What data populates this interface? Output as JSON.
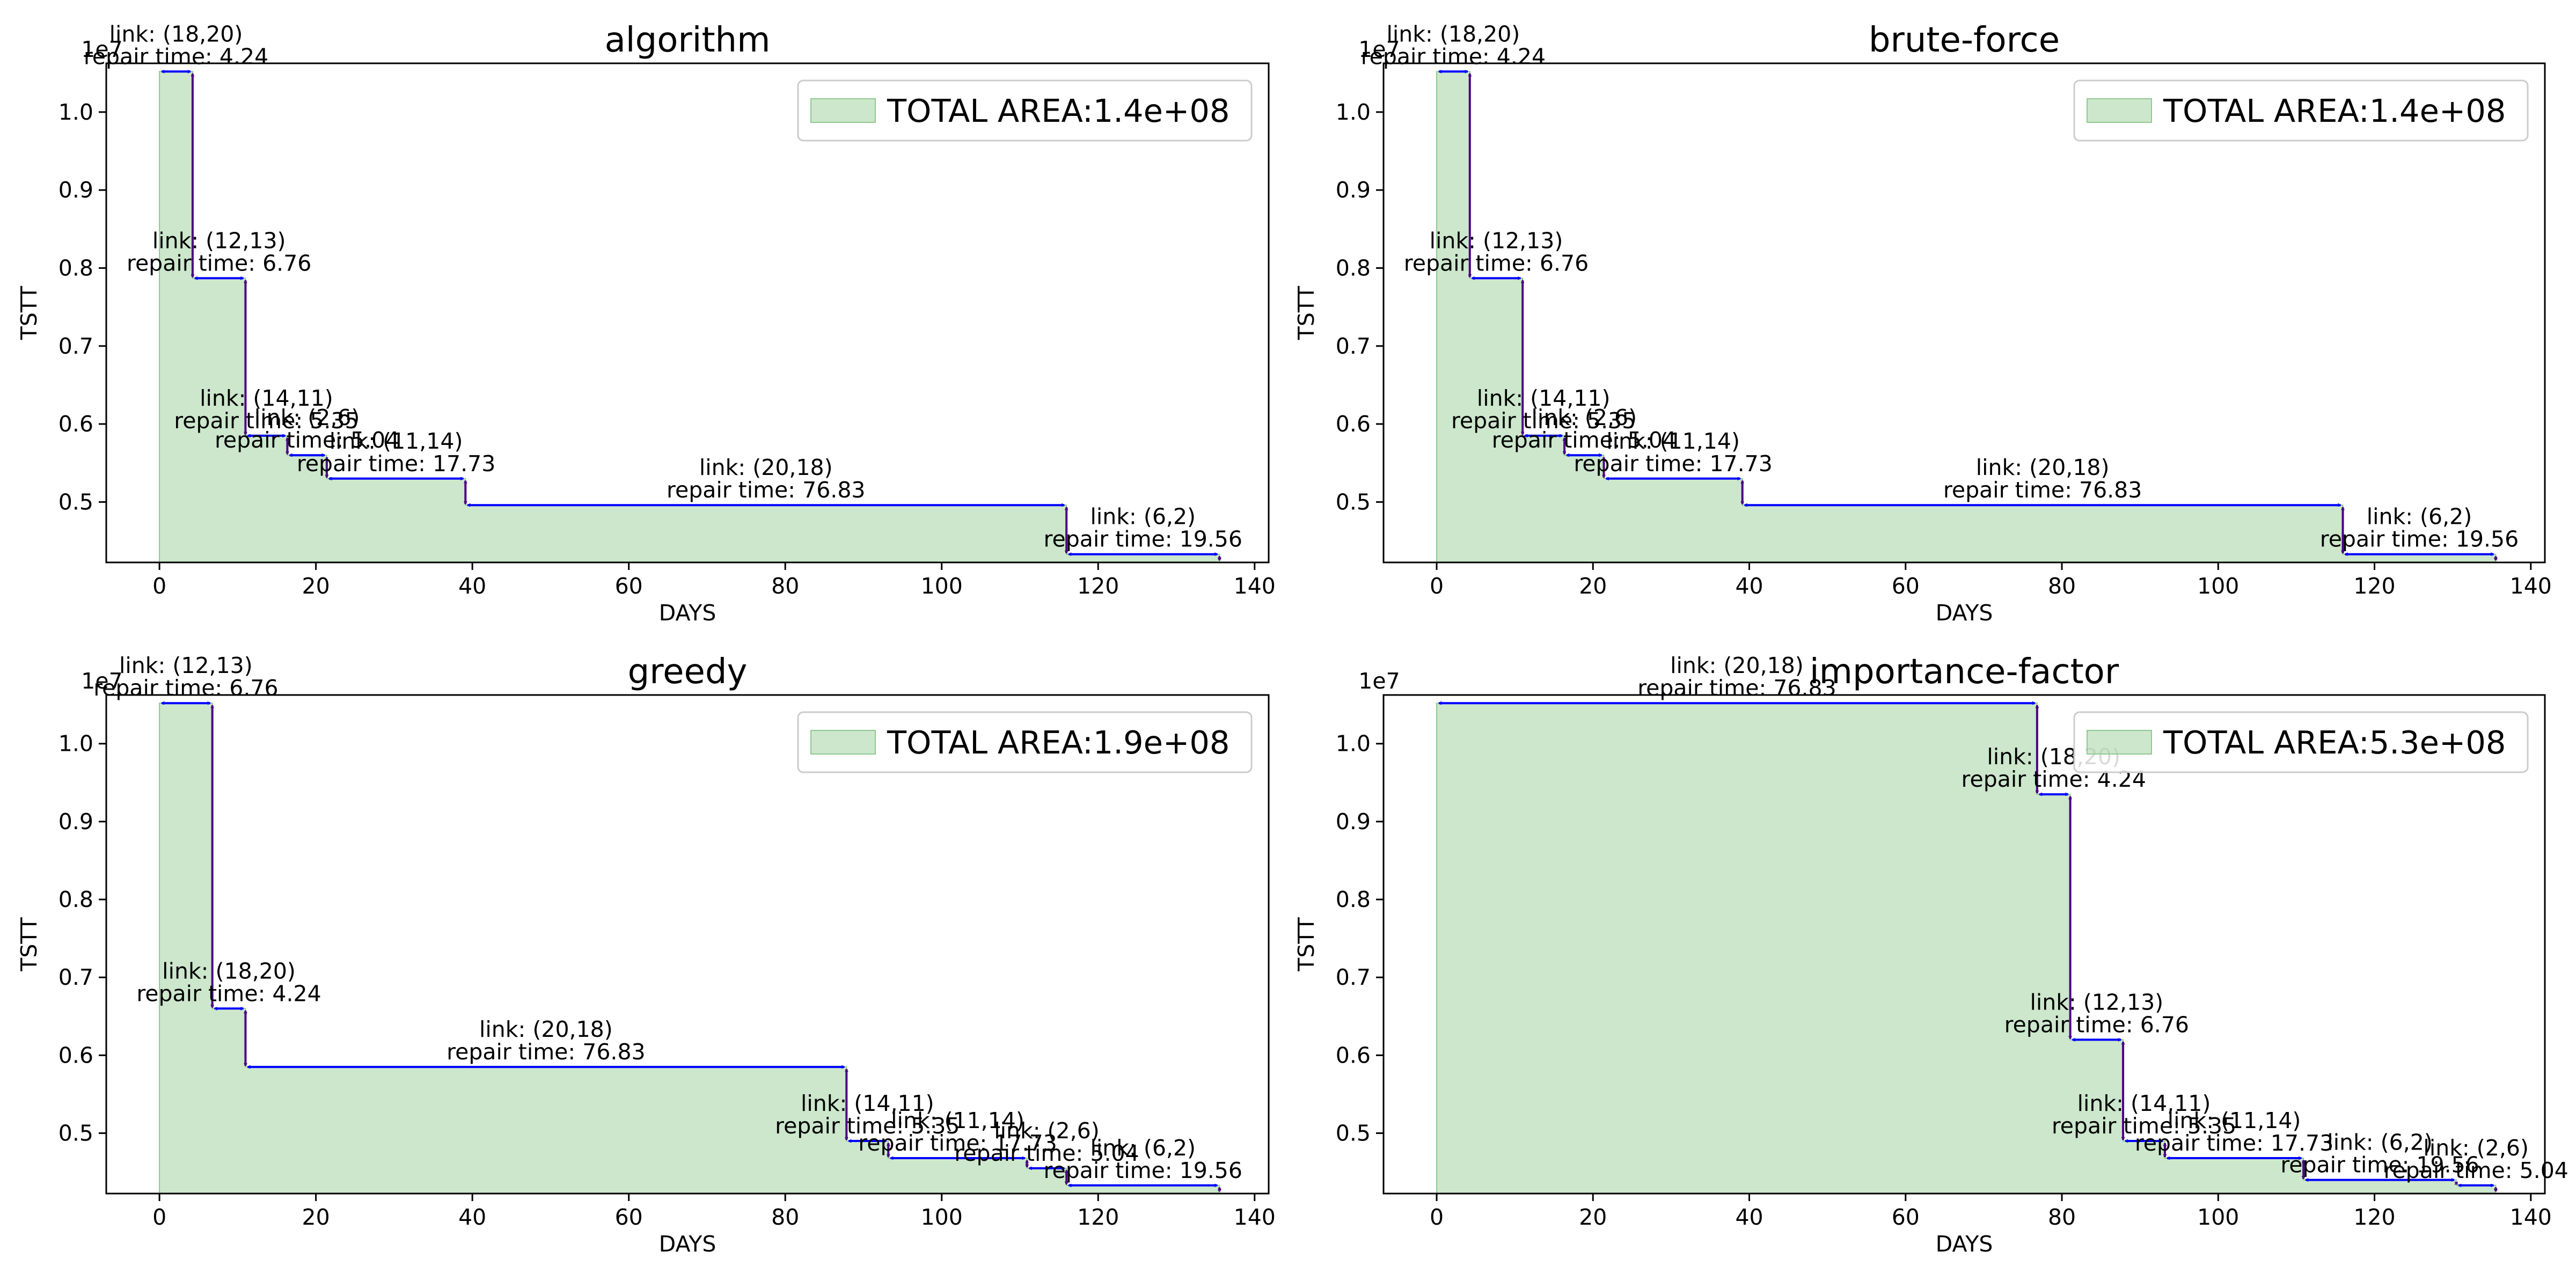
{
  "chart_data": [
    {
      "type": "area",
      "title": "algorithm",
      "xlabel": "DAYS",
      "ylabel": "TSTT",
      "y_offset_text": "1e7",
      "xlim": [
        -6.8,
        141.8
      ],
      "ylim": [
        0.4225,
        1.0625
      ],
      "xticks": [
        0,
        20,
        40,
        60,
        80,
        100,
        120,
        140
      ],
      "yticks": [
        0.5,
        0.6,
        0.7,
        0.8,
        0.9,
        1.0
      ],
      "ytick_labels": [
        "0.5",
        "0.6",
        "0.7",
        "0.8",
        "0.9",
        "1.0"
      ],
      "legend": "TOTAL AREA:1.4e+08",
      "legend_loc": "upper right",
      "grid": false,
      "colors": {
        "fill": "#a3d4a3",
        "arrow_h": "#0000ff",
        "arrow_v": "#4b0082"
      },
      "steps": [
        {
          "link": "link: (18,20)",
          "repair": "repair time: 4.24",
          "x0": 0,
          "x1": 4.24,
          "y_before": 1.052,
          "y_after": 0.787
        },
        {
          "link": "link: (12,13)",
          "repair": "repair time: 6.76",
          "x0": 4.24,
          "x1": 11.0,
          "y_before": 0.787,
          "y_after": 0.585
        },
        {
          "link": "link: (14,11)",
          "repair": "repair time: 5.35",
          "x0": 11.0,
          "x1": 16.35,
          "y_before": 0.585,
          "y_after": 0.56
        },
        {
          "link": "link: (2,6)",
          "repair": "repair time: 5.04",
          "x0": 16.35,
          "x1": 21.39,
          "y_before": 0.56,
          "y_after": 0.53
        },
        {
          "link": "link: (11,14)",
          "repair": "repair time: 17.73",
          "x0": 21.39,
          "x1": 39.12,
          "y_before": 0.53,
          "y_after": 0.496
        },
        {
          "link": "link: (20,18)",
          "repair": "repair time: 76.83",
          "x0": 39.12,
          "x1": 115.95,
          "y_before": 0.496,
          "y_after": 0.433
        },
        {
          "link": "link: (6,2)",
          "repair": "repair time: 19.56",
          "x0": 115.95,
          "x1": 135.51,
          "y_before": 0.433,
          "y_after": 0.4225
        }
      ]
    },
    {
      "type": "area",
      "title": "brute-force",
      "xlabel": "DAYS",
      "ylabel": "TSTT",
      "y_offset_text": "1e7",
      "xlim": [
        -6.8,
        141.8
      ],
      "ylim": [
        0.4225,
        1.0625
      ],
      "xticks": [
        0,
        20,
        40,
        60,
        80,
        100,
        120,
        140
      ],
      "yticks": [
        0.5,
        0.6,
        0.7,
        0.8,
        0.9,
        1.0
      ],
      "ytick_labels": [
        "0.5",
        "0.6",
        "0.7",
        "0.8",
        "0.9",
        "1.0"
      ],
      "legend": "TOTAL AREA:1.4e+08",
      "legend_loc": "upper right",
      "grid": false,
      "colors": {
        "fill": "#a3d4a3",
        "arrow_h": "#0000ff",
        "arrow_v": "#4b0082"
      },
      "steps": [
        {
          "link": "link: (18,20)",
          "repair": "repair time: 4.24",
          "x0": 0,
          "x1": 4.24,
          "y_before": 1.052,
          "y_after": 0.787
        },
        {
          "link": "link: (12,13)",
          "repair": "repair time: 6.76",
          "x0": 4.24,
          "x1": 11.0,
          "y_before": 0.787,
          "y_after": 0.585
        },
        {
          "link": "link: (14,11)",
          "repair": "repair time: 5.35",
          "x0": 11.0,
          "x1": 16.35,
          "y_before": 0.585,
          "y_after": 0.56
        },
        {
          "link": "link: (2,6)",
          "repair": "repair time: 5.04",
          "x0": 16.35,
          "x1": 21.39,
          "y_before": 0.56,
          "y_after": 0.53
        },
        {
          "link": "link: (11,14)",
          "repair": "repair time: 17.73",
          "x0": 21.39,
          "x1": 39.12,
          "y_before": 0.53,
          "y_after": 0.496
        },
        {
          "link": "link: (20,18)",
          "repair": "repair time: 76.83",
          "x0": 39.12,
          "x1": 115.95,
          "y_before": 0.496,
          "y_after": 0.433
        },
        {
          "link": "link: (6,2)",
          "repair": "repair time: 19.56",
          "x0": 115.95,
          "x1": 135.51,
          "y_before": 0.433,
          "y_after": 0.4225
        }
      ]
    },
    {
      "type": "area",
      "title": "greedy",
      "xlabel": "DAYS",
      "ylabel": "TSTT",
      "y_offset_text": "1e7",
      "xlim": [
        -6.8,
        141.8
      ],
      "ylim": [
        0.4225,
        1.0625
      ],
      "xticks": [
        0,
        20,
        40,
        60,
        80,
        100,
        120,
        140
      ],
      "yticks": [
        0.5,
        0.6,
        0.7,
        0.8,
        0.9,
        1.0
      ],
      "ytick_labels": [
        "0.5",
        "0.6",
        "0.7",
        "0.8",
        "0.9",
        "1.0"
      ],
      "legend": "TOTAL AREA:1.9e+08",
      "legend_loc": "upper right",
      "grid": false,
      "colors": {
        "fill": "#a3d4a3",
        "arrow_h": "#0000ff",
        "arrow_v": "#4b0082"
      },
      "steps": [
        {
          "link": "link: (12,13)",
          "repair": "repair time: 6.76",
          "x0": 0,
          "x1": 6.76,
          "y_before": 1.052,
          "y_after": 0.66
        },
        {
          "link": "link: (18,20)",
          "repair": "repair time: 4.24",
          "x0": 6.76,
          "x1": 11.0,
          "y_before": 0.66,
          "y_after": 0.585
        },
        {
          "link": "link: (20,18)",
          "repair": "repair time: 76.83",
          "x0": 11.0,
          "x1": 87.83,
          "y_before": 0.585,
          "y_after": 0.49
        },
        {
          "link": "link: (14,11)",
          "repair": "repair time: 5.35",
          "x0": 87.83,
          "x1": 93.18,
          "y_before": 0.49,
          "y_after": 0.468
        },
        {
          "link": "link: (11,14)",
          "repair": "repair time: 17.73",
          "x0": 93.18,
          "x1": 110.91,
          "y_before": 0.468,
          "y_after": 0.455
        },
        {
          "link": "link: (2,6)",
          "repair": "repair time: 5.04",
          "x0": 110.91,
          "x1": 115.95,
          "y_before": 0.455,
          "y_after": 0.433
        },
        {
          "link": "link: (6,2)",
          "repair": "repair time: 19.56",
          "x0": 115.95,
          "x1": 135.51,
          "y_before": 0.433,
          "y_after": 0.4225
        }
      ]
    },
    {
      "type": "area",
      "title": "importance-factor",
      "xlabel": "DAYS",
      "ylabel": "TSTT",
      "y_offset_text": "1e7",
      "xlim": [
        -6.8,
        141.8
      ],
      "ylim": [
        0.4225,
        1.0625
      ],
      "xticks": [
        0,
        20,
        40,
        60,
        80,
        100,
        120,
        140
      ],
      "yticks": [
        0.5,
        0.6,
        0.7,
        0.8,
        0.9,
        1.0
      ],
      "ytick_labels": [
        "0.5",
        "0.6",
        "0.7",
        "0.8",
        "0.9",
        "1.0"
      ],
      "legend": "TOTAL AREA:5.3e+08",
      "legend_loc": "upper right",
      "grid": false,
      "colors": {
        "fill": "#a3d4a3",
        "arrow_h": "#0000ff",
        "arrow_v": "#4b0082"
      },
      "steps": [
        {
          "link": "link: (20,18)",
          "repair": "repair time: 76.83",
          "x0": 0,
          "x1": 76.83,
          "y_before": 1.052,
          "y_after": 0.935
        },
        {
          "link": "link: (18,20)",
          "repair": "repair time: 4.24",
          "x0": 76.83,
          "x1": 81.07,
          "y_before": 0.935,
          "y_after": 0.62
        },
        {
          "link": "link: (12,13)",
          "repair": "repair time: 6.76",
          "x0": 81.07,
          "x1": 87.83,
          "y_before": 0.62,
          "y_after": 0.49
        },
        {
          "link": "link: (14,11)",
          "repair": "repair time: 5.35",
          "x0": 87.83,
          "x1": 93.18,
          "y_before": 0.49,
          "y_after": 0.468
        },
        {
          "link": "link: (11,14)",
          "repair": "repair time: 17.73",
          "x0": 93.18,
          "x1": 110.91,
          "y_before": 0.468,
          "y_after": 0.44
        },
        {
          "link": "link: (6,2)",
          "repair": "repair time: 19.56",
          "x0": 110.91,
          "x1": 130.47,
          "y_before": 0.44,
          "y_after": 0.433
        },
        {
          "link": "link: (2,6)",
          "repair": "repair time: 5.04",
          "x0": 130.47,
          "x1": 135.51,
          "y_before": 0.433,
          "y_after": 0.4225
        }
      ]
    }
  ]
}
